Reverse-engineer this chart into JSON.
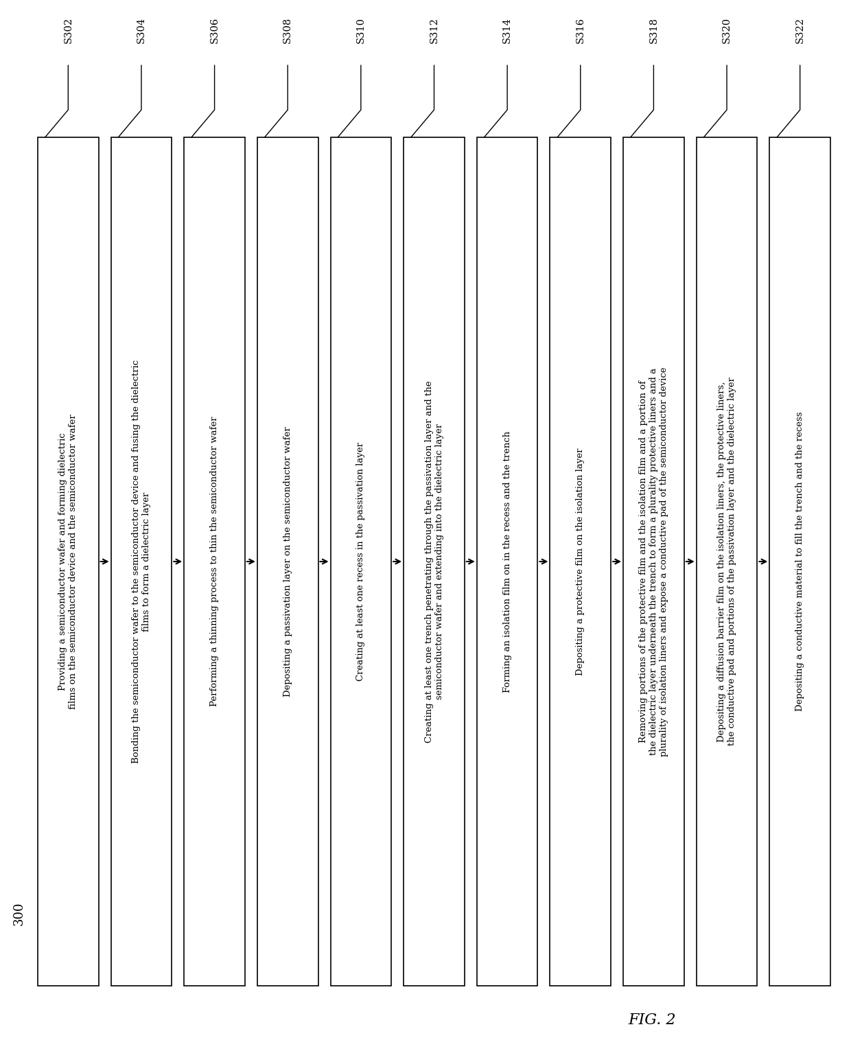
{
  "title": "FIG. 2",
  "label_300": "300",
  "steps": [
    {
      "id": "S302",
      "text": "Providing a semiconductor wafer and forming dielectric\nfilms on the semiconductor device and the semiconductor wafer"
    },
    {
      "id": "S304",
      "text": "Bonding the semiconductor wafer to the semiconductor device and fusing the dielectric\nfilms to form a dielectric layer"
    },
    {
      "id": "S306",
      "text": "Performing a thinning process to thin the semiconductor wafer"
    },
    {
      "id": "S308",
      "text": "Depositing a passivation layer on the semiconductor wafer"
    },
    {
      "id": "S310",
      "text": "Creating at least one recess in the passivation layer"
    },
    {
      "id": "S312",
      "text": "Creating at least one trench penetrating through the passivation layer and the\nsemiconductor wafer and extending into the dielectric layer"
    },
    {
      "id": "S314",
      "text": "Forming an isolation film on in the recess and the trench"
    },
    {
      "id": "S316",
      "text": "Depositing a protective film on the isolation layer"
    },
    {
      "id": "S318",
      "text": "Removing portions of the protective film and the isolation film and a portion of\nthe dielectric layer underneath the trench to form a plurality protective liners and a\nplurality of isolation liners and expose a conductive pad of the semiconductor device"
    },
    {
      "id": "S320",
      "text": "Depositing a diffusion barrier film on the isolation liners, the protective liners,\nthe conductive pad and portions of the passivation layer and the dielectric layer"
    },
    {
      "id": "S322",
      "text": "Depositing a conductive material to fill the trench and the recess"
    }
  ],
  "box_fill": "#ffffff",
  "box_edge": "#000000",
  "arrow_color": "#000000",
  "text_color": "#000000",
  "bg_color": "#ffffff",
  "text_fontsize": 9.5,
  "id_fontsize": 10.5,
  "title_fontsize": 16,
  "label300_fontsize": 13
}
